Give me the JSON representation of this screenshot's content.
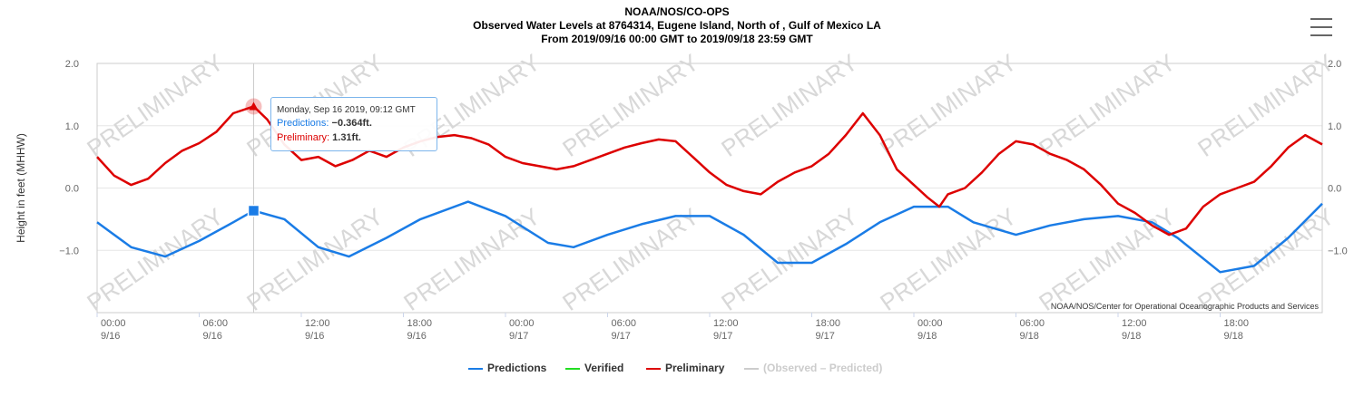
{
  "header": {
    "line1": "NOAA/NOS/CO-OPS",
    "line2": "Observed Water Levels at 8764314, Eugene Island, North of , Gulf of Mexico LA",
    "line3": "From 2019/09/16 00:00 GMT to 2019/09/18 23:59 GMT"
  },
  "credit": "NOAA/NOS/Center for Operational Oceanographic Products and Services",
  "watermark": "PRELIMINARY",
  "tooltip": {
    "heading": "Monday, Sep 16 2019, 09:12 GMT",
    "pred_label": "Predictions:",
    "pred_value": "−0.364ft.",
    "prelim_label": "Preliminary:",
    "prelim_value": "1.31ft."
  },
  "legend": [
    {
      "label": "Predictions",
      "color": "#1a7ce6"
    },
    {
      "label": "Verified",
      "color": "#22dd22"
    },
    {
      "label": "Preliminary",
      "color": "#dd0000"
    },
    {
      "label": "(Observed – Predicted)",
      "color": "#cccccc",
      "muted": true
    }
  ],
  "chart_data": {
    "type": "line",
    "ylabel": "Height in feet (MHHW)",
    "ylim": [
      -2.0,
      2.0
    ],
    "yticks": [
      "2.0",
      "1.0",
      "0.0",
      "−1.0"
    ],
    "yticks_right": [
      "2.0",
      "1.0",
      "0.0",
      "−1.0"
    ],
    "xlim_hours": [
      0,
      72
    ],
    "xticks": [
      {
        "time": "00:00",
        "date": "9/16"
      },
      {
        "time": "06:00",
        "date": "9/16"
      },
      {
        "time": "12:00",
        "date": "9/16"
      },
      {
        "time": "18:00",
        "date": "9/16"
      },
      {
        "time": "00:00",
        "date": "9/17"
      },
      {
        "time": "06:00",
        "date": "9/17"
      },
      {
        "time": "12:00",
        "date": "9/17"
      },
      {
        "time": "18:00",
        "date": "9/17"
      },
      {
        "time": "00:00",
        "date": "9/18"
      },
      {
        "time": "06:00",
        "date": "9/18"
      },
      {
        "time": "12:00",
        "date": "9/18"
      },
      {
        "time": "18:00",
        "date": "9/18"
      }
    ],
    "series": [
      {
        "name": "Predictions",
        "color": "#1a7ce6",
        "x_hours": [
          0,
          2,
          4,
          6,
          8,
          9.2,
          11,
          13,
          14.8,
          17,
          19,
          21.8,
          24,
          26.5,
          28,
          30,
          32,
          34,
          36,
          38,
          40,
          42,
          44,
          46,
          48,
          50,
          51.5,
          54,
          56,
          58,
          60,
          62,
          63.5,
          66,
          68,
          70,
          72
        ],
        "values": [
          -0.55,
          -0.95,
          -1.1,
          -0.85,
          -0.55,
          -0.364,
          -0.5,
          -0.95,
          -1.1,
          -0.8,
          -0.5,
          -0.22,
          -0.45,
          -0.88,
          -0.95,
          -0.75,
          -0.58,
          -0.45,
          -0.45,
          -0.75,
          -1.2,
          -1.2,
          -0.9,
          -0.55,
          -0.3,
          -0.3,
          -0.55,
          -0.75,
          -0.6,
          -0.5,
          -0.45,
          -0.55,
          -0.8,
          -1.35,
          -1.25,
          -0.8,
          -0.25
        ]
      },
      {
        "name": "Verified",
        "color": "#22dd22",
        "x_hours": [],
        "values": []
      },
      {
        "name": "Preliminary",
        "color": "#dd0000",
        "x_hours": [
          0,
          1,
          2,
          3,
          4,
          5,
          6,
          7,
          8,
          9.2,
          10,
          11,
          12,
          13,
          14,
          15,
          16,
          17,
          18,
          19,
          20,
          21,
          22,
          23,
          24,
          25,
          26,
          27,
          28,
          29,
          30,
          31,
          32,
          33,
          34,
          35,
          36,
          37,
          38,
          39,
          40,
          41,
          42,
          43,
          44,
          45,
          46,
          47,
          48,
          48.8,
          49.5,
          50,
          51,
          52,
          53,
          54,
          55,
          56,
          57,
          58,
          59,
          60,
          61,
          62,
          63,
          64,
          65,
          66,
          67,
          68,
          69,
          70,
          71,
          72
        ],
        "values": [
          0.5,
          0.2,
          0.05,
          0.15,
          0.4,
          0.6,
          0.72,
          0.9,
          1.2,
          1.31,
          1.1,
          0.7,
          0.45,
          0.5,
          0.35,
          0.45,
          0.6,
          0.5,
          0.65,
          0.75,
          0.82,
          0.85,
          0.8,
          0.7,
          0.5,
          0.4,
          0.35,
          0.3,
          0.35,
          0.45,
          0.55,
          0.65,
          0.72,
          0.78,
          0.75,
          0.5,
          0.25,
          0.05,
          -0.05,
          -0.1,
          0.1,
          0.25,
          0.35,
          0.55,
          0.85,
          1.2,
          0.85,
          0.3,
          0.05,
          -0.15,
          -0.3,
          -0.1,
          0.0,
          0.25,
          0.55,
          0.75,
          0.7,
          0.55,
          0.45,
          0.3,
          0.05,
          -0.25,
          -0.4,
          -0.6,
          -0.75,
          -0.65,
          -0.3,
          -0.1,
          0.0,
          0.1,
          0.35,
          0.65,
          0.85,
          0.7
        ]
      },
      {
        "name": "(Observed – Predicted)",
        "color": "#cccccc",
        "x_hours": [],
        "values": []
      }
    ],
    "highlight": {
      "x_hour": 9.2,
      "prediction": -0.364,
      "preliminary": 1.31
    },
    "grid": true,
    "legend_position": "bottom-center"
  }
}
